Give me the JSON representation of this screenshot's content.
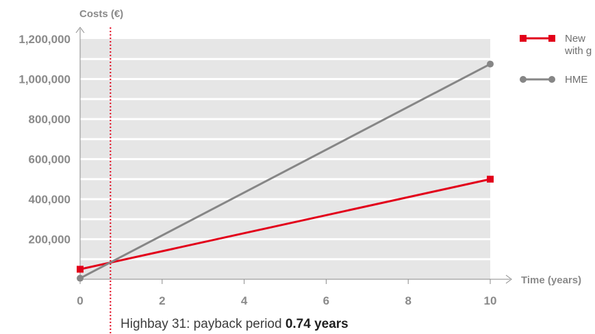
{
  "chart_data": {
    "type": "line",
    "ylabel": "Costs (€)",
    "xlabel": "Time (years)",
    "xlim": [
      0,
      10
    ],
    "ylim": [
      0,
      1200000
    ],
    "x_ticks": [
      0,
      2,
      4,
      6,
      8,
      10
    ],
    "x_tick_labels": [
      "0",
      "2",
      "4",
      "6",
      "8",
      "10"
    ],
    "y_ticks": [
      200000,
      400000,
      600000,
      800000,
      1000000,
      1200000
    ],
    "y_tick_labels": [
      "200,000",
      "400,000",
      "600,000",
      "800,000",
      "1,000,000",
      "1,200,000"
    ],
    "grid": true,
    "legend_position": "top-right",
    "series": [
      {
        "name": "New\nwith g",
        "color": "#e2001a",
        "marker": "square",
        "x": [
          0,
          10
        ],
        "y": [
          50000,
          500000
        ]
      },
      {
        "name": "HME",
        "color": "#868686",
        "marker": "circle",
        "x": [
          0,
          10
        ],
        "y": [
          5000,
          1075000
        ]
      }
    ],
    "payback_line": {
      "x": 0.74,
      "color": "#e2001a"
    },
    "annotation": {
      "prefix": "Highbay 31: payback period ",
      "value": "0.74 years"
    }
  },
  "colors": {
    "plot_background": "#e6e6e6",
    "gridline": "#ffffff",
    "axis": "#8a8a8a"
  }
}
